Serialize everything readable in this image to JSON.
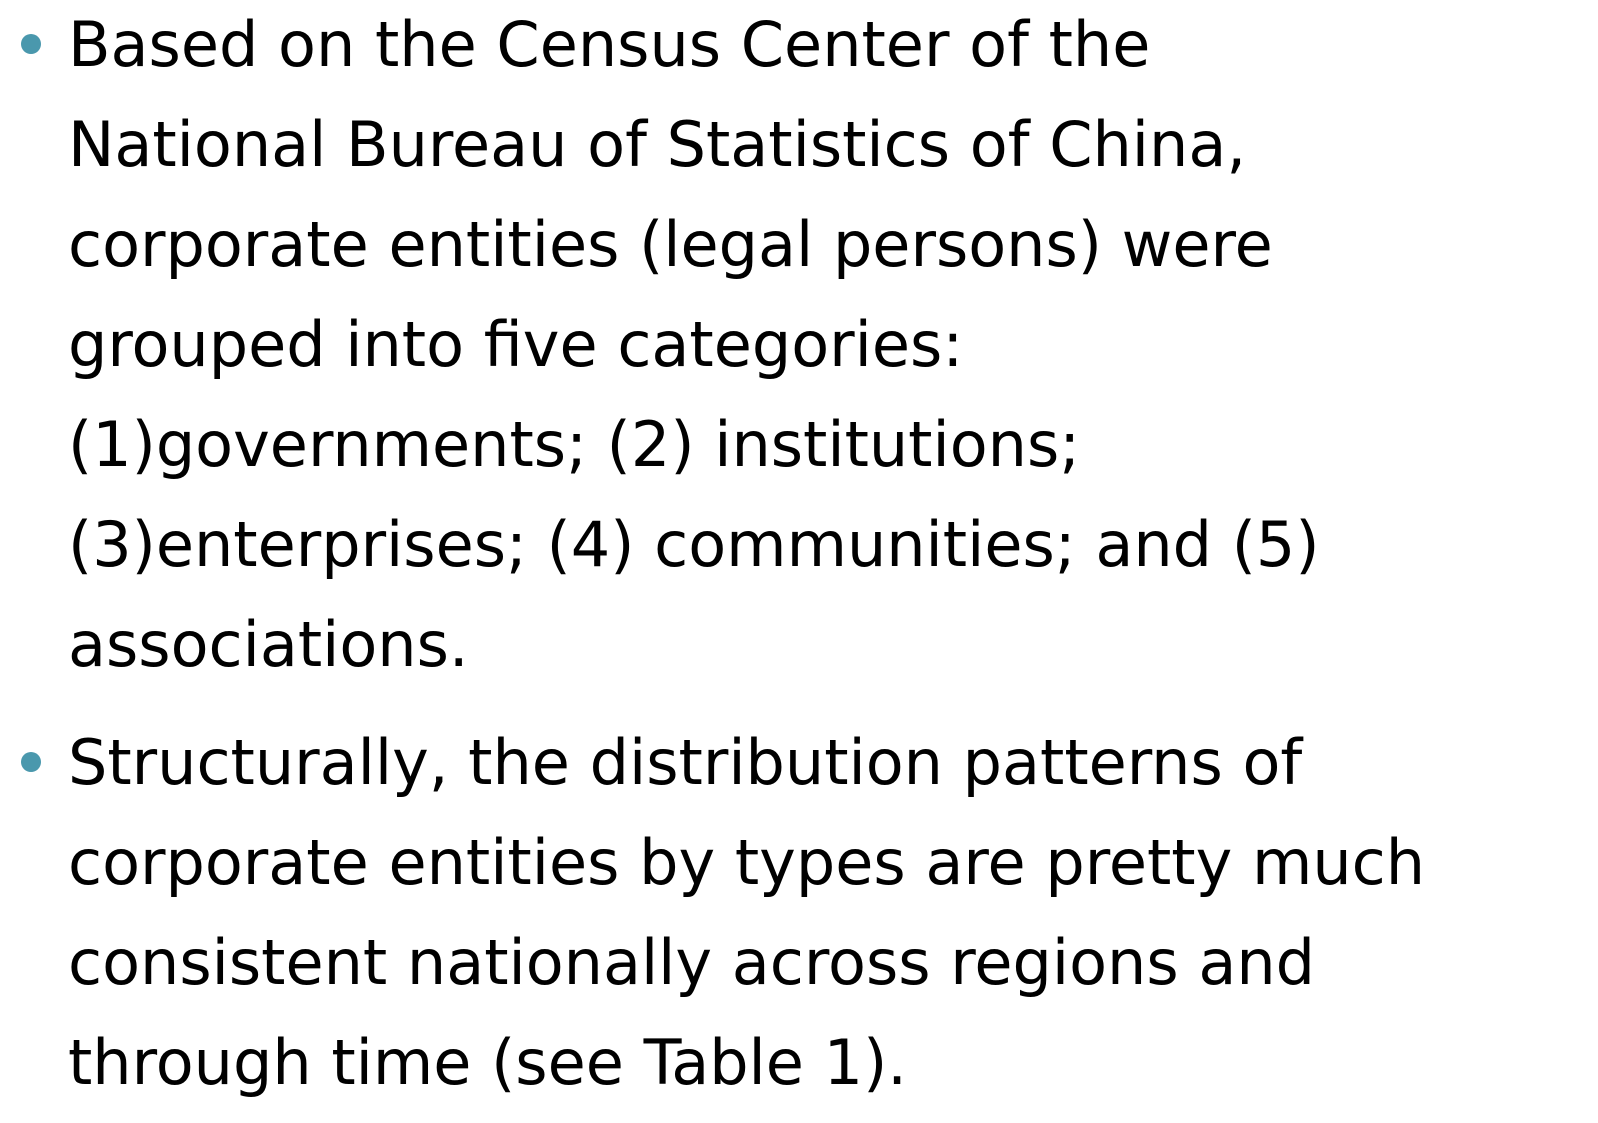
{
  "bullets": [
    {
      "lines": [
        "Based on the Census Center of the",
        "National Bureau of Statistics of China,",
        "corporate entities (legal persons) were",
        "grouped into five categories:",
        "(1)governments; (2) institutions;",
        "(3)enterprises; (4) communities; and (5)",
        "associations."
      ]
    },
    {
      "lines": [
        "Structurally, the distribution patterns of",
        "corporate entities by types are pretty much",
        "consistent nationally across regions and",
        "through time (see Table 1)."
      ]
    }
  ]
}
